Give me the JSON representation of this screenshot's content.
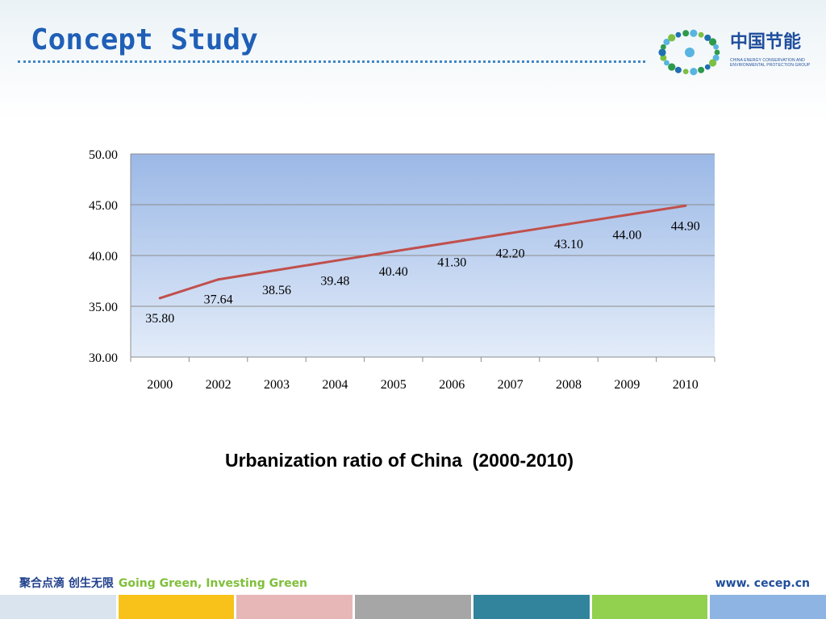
{
  "slide": {
    "title": "Concept Study",
    "caption": "Urbanization ratio of China  (2000-2010)"
  },
  "logo": {
    "name": "中国节能",
    "subtitle": "CHINA ENERGY CONSERVATION AND ENVIRONMENTAL PROTECTION GROUP",
    "ring_colors": [
      "#2e9a4c",
      "#58b4e0",
      "#7cc043",
      "#1f6fb2"
    ]
  },
  "footer": {
    "slogan_cn": "聚合点滴 创生无限",
    "slogan_en": "Going Green, Investing Green",
    "website": "www. cecep.cn",
    "colors": [
      "#d9e4ee",
      "#f8c21a",
      "#e7b6b6",
      "#a6a6a6",
      "#31849b",
      "#92d050",
      "#8db4e2"
    ]
  },
  "chart_data": {
    "type": "line",
    "categories": [
      "2000",
      "2002",
      "2003",
      "2004",
      "2005",
      "2006",
      "2007",
      "2008",
      "2009",
      "2010"
    ],
    "series": [
      {
        "values": [
          35.8,
          37.64,
          38.56,
          39.48,
          40.4,
          41.3,
          42.2,
          43.1,
          44.0,
          44.9
        ],
        "labels": [
          "35.80",
          "37.64",
          "38.56",
          "39.48",
          "40.40",
          "41.30",
          "42.20",
          "43.10",
          "44.00",
          "44.90"
        ],
        "color": "#c0504d"
      }
    ],
    "ylim": [
      30,
      50
    ],
    "yticks": [
      "30.00",
      "35.00",
      "40.00",
      "45.00",
      "50.00"
    ],
    "ytick_values": [
      30,
      35,
      40,
      45,
      50
    ],
    "grid": true,
    "legend": "none",
    "plot_background": [
      "#9bb8e6",
      "#e3ecf9"
    ]
  }
}
